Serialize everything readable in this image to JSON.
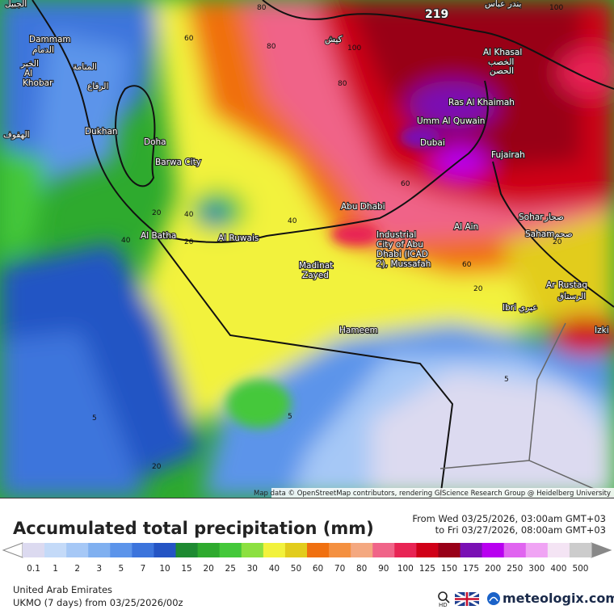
{
  "map": {
    "attribution": "Map data © OpenStreetMap contributors, rendering GIScience Research Group @ Heidelberg University",
    "cities": [
      "الجبيل",
      "Dammam",
      "الدمام",
      "Al",
      "Khobar",
      "الخبر",
      "المنامة",
      "الرفاع",
      "Dukhan",
      "الهفوف",
      "Doha",
      "Barwa City",
      "Al Batha",
      "Al Ruwais",
      "Abu Dhabi",
      "Industrial",
      "City of Abu",
      "Dhabi (ICAD",
      "2), Mussafah",
      "Madinat",
      "Zayed",
      "Hameem",
      "Al Ain",
      "Dubai",
      "Umm Al Quwain",
      "Ras Al Khaimah",
      "Al Khasal",
      "الخصب",
      "الحصن",
      "Fujairah",
      "Sohar",
      "صحار",
      "Saham",
      "صحم",
      "Ar Rustaq",
      "الرستاق",
      "Ibri",
      "عبري",
      "Izki",
      "كيش",
      "بندر عباس",
      "219"
    ],
    "contour_labels": [
      "80",
      "60",
      "80",
      "100",
      "80",
      "40",
      "20",
      "40",
      "20",
      "20",
      "40",
      "60",
      "20",
      "5",
      "5",
      "5",
      "20",
      "100",
      "60"
    ]
  },
  "legend": {
    "title": "Accumulated total precipitation (mm)",
    "from": "From Wed 03/25/2026, 03:00am GMT+03",
    "to": "to Fri 03/27/2026, 08:00am GMT+03",
    "items": [
      {
        "value": 0.1,
        "color": "#dcdaf0"
      },
      {
        "value": 1,
        "color": "#c4daf8"
      },
      {
        "value": 2,
        "color": "#a6c8f6"
      },
      {
        "value": 3,
        "color": "#80b0f0"
      },
      {
        "value": 5,
        "color": "#5c94ea"
      },
      {
        "value": 7,
        "color": "#3c74dc"
      },
      {
        "value": 10,
        "color": "#2454c4"
      },
      {
        "value": 15,
        "color": "#1e8a32"
      },
      {
        "value": 20,
        "color": "#2eaa2e"
      },
      {
        "value": 25,
        "color": "#44c83a"
      },
      {
        "value": 30,
        "color": "#8ce040"
      },
      {
        "value": 40,
        "color": "#f2f23c"
      },
      {
        "value": 50,
        "color": "#e2cc1c"
      },
      {
        "value": 60,
        "color": "#f07010"
      },
      {
        "value": 70,
        "color": "#f49040"
      },
      {
        "value": 80,
        "color": "#f4a880"
      },
      {
        "value": 90,
        "color": "#f06488"
      },
      {
        "value": 100,
        "color": "#e82454"
      },
      {
        "value": 125,
        "color": "#d00018"
      },
      {
        "value": 150,
        "color": "#980018"
      },
      {
        "value": 175,
        "color": "#7a10b4"
      },
      {
        "value": 200,
        "color": "#b800f0"
      },
      {
        "value": 250,
        "color": "#e064f0"
      },
      {
        "value": 300,
        "color": "#f0a4f4"
      },
      {
        "value": 400,
        "color": "#f4e4f4"
      },
      {
        "value": 500,
        "color": "#cccccc"
      }
    ]
  },
  "footer": {
    "region": "United Arab Emirates",
    "model": "UKMO (7 days) from 03/25/2026/00z",
    "brand": "meteologix.com",
    "hd": "HD"
  }
}
